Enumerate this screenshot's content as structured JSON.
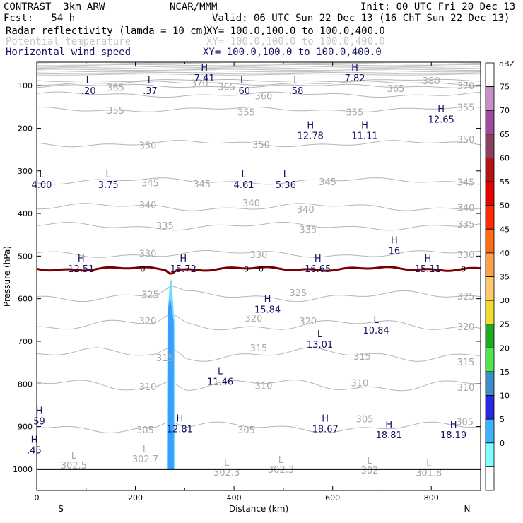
{
  "header": {
    "title": "CONTRAST  3km ARW",
    "center": "NCAR/MMM",
    "init": "Init: 00 UTC Fri 20 Dec 13",
    "fcst": "Fcst:   54 h",
    "valid": "Valid: 06 UTC Sun 22 Dec 13 (16 ChT Sun 22 Dec 13)",
    "fields": [
      {
        "name": "Radar reflectivity (lamda = 10 cm)",
        "xy": "XY= 100.0,100.0 to 100.0,400.0",
        "color": "#000000"
      },
      {
        "name": "Potential temperature",
        "xy": "XY= 100.0,100.0 to 100.0,400.0",
        "color": "#c8c8c8"
      },
      {
        "name": "Horizontal wind speed",
        "xy": "XY= 100.0,100.0 to 100.0,400.0",
        "color": "#141464"
      }
    ]
  },
  "chart_data": {
    "type": "contour-cross-section",
    "xlabel": "Distance (km)",
    "ylabel": "Pressure (hPa)",
    "xlim": [
      0,
      900
    ],
    "ylim": [
      1050,
      45
    ],
    "x_ticks": [
      "0",
      "200",
      "400",
      "600",
      "800"
    ],
    "x_tick_values": [
      0,
      200,
      400,
      600,
      800
    ],
    "y_ticks": [
      "100",
      "200",
      "300",
      "400",
      "500",
      "600",
      "700",
      "800",
      "900",
      "1000"
    ],
    "y_tick_values": [
      100,
      200,
      300,
      400,
      500,
      600,
      700,
      800,
      900,
      1000
    ],
    "x_end_labels": {
      "left": "S",
      "right": "N"
    },
    "theta_contours": [
      {
        "label": "380",
        "p": 88,
        "amp": 2
      },
      {
        "label": "370",
        "p": 94,
        "amp": 3
      },
      {
        "label": "365",
        "p": 101,
        "amp": 3
      },
      {
        "label": "360",
        "p": 121,
        "amp": 4
      },
      {
        "label": "355",
        "p": 156,
        "amp": 4
      },
      {
        "label": "350",
        "p": 236,
        "amp": 5
      },
      {
        "label": "345",
        "p": 324,
        "amp": 5
      },
      {
        "label": "340",
        "p": 385,
        "amp": 6
      },
      {
        "label": "335",
        "p": 430,
        "amp": 6
      },
      {
        "label": "330",
        "p": 495,
        "amp": 6
      },
      {
        "label": "325",
        "p": 594,
        "amp": 8
      },
      {
        "label": "320",
        "p": 662,
        "amp": 9
      },
      {
        "label": "315",
        "p": 731,
        "amp": 10
      },
      {
        "label": "310",
        "p": 803,
        "amp": 10
      },
      {
        "label": "305",
        "p": 902,
        "amp": 8
      }
    ],
    "theta_labels": [
      {
        "text": "380",
        "x": 800,
        "p": 88
      },
      {
        "text": "370",
        "x": 330,
        "p": 94
      },
      {
        "text": "370",
        "x": 870,
        "p": 100
      },
      {
        "text": "365",
        "x": 160,
        "p": 104
      },
      {
        "text": "365",
        "x": 728,
        "p": 106
      },
      {
        "text": "365",
        "x": 385,
        "p": 102
      },
      {
        "text": "360",
        "x": 460,
        "p": 124
      },
      {
        "text": "355",
        "x": 160,
        "p": 158
      },
      {
        "text": "355",
        "x": 425,
        "p": 162
      },
      {
        "text": "355",
        "x": 645,
        "p": 162
      },
      {
        "text": "355",
        "x": 870,
        "p": 150
      },
      {
        "text": "350",
        "x": 225,
        "p": 240
      },
      {
        "text": "350",
        "x": 455,
        "p": 238
      },
      {
        "text": "350",
        "x": 870,
        "p": 226
      },
      {
        "text": "345",
        "x": 230,
        "p": 328
      },
      {
        "text": "345",
        "x": 335,
        "p": 330
      },
      {
        "text": "345",
        "x": 590,
        "p": 325
      },
      {
        "text": "345",
        "x": 870,
        "p": 326
      },
      {
        "text": "340",
        "x": 225,
        "p": 380
      },
      {
        "text": "340",
        "x": 435,
        "p": 375
      },
      {
        "text": "340",
        "x": 545,
        "p": 390
      },
      {
        "text": "340",
        "x": 870,
        "p": 386
      },
      {
        "text": "335",
        "x": 260,
        "p": 428
      },
      {
        "text": "335",
        "x": 550,
        "p": 437
      },
      {
        "text": "335",
        "x": 870,
        "p": 425
      },
      {
        "text": "330",
        "x": 225,
        "p": 494
      },
      {
        "text": "330",
        "x": 450,
        "p": 496
      },
      {
        "text": "330",
        "x": 870,
        "p": 496
      },
      {
        "text": "325",
        "x": 230,
        "p": 590
      },
      {
        "text": "325",
        "x": 530,
        "p": 586
      },
      {
        "text": "325",
        "x": 870,
        "p": 594
      },
      {
        "text": "320",
        "x": 225,
        "p": 651
      },
      {
        "text": "320",
        "x": 440,
        "p": 645
      },
      {
        "text": "320",
        "x": 550,
        "p": 652
      },
      {
        "text": "320",
        "x": 870,
        "p": 665
      },
      {
        "text": "315",
        "x": 260,
        "p": 738
      },
      {
        "text": "315",
        "x": 450,
        "p": 715
      },
      {
        "text": "315",
        "x": 660,
        "p": 735
      },
      {
        "text": "315",
        "x": 870,
        "p": 748
      },
      {
        "text": "310",
        "x": 225,
        "p": 806
      },
      {
        "text": "310",
        "x": 460,
        "p": 804
      },
      {
        "text": "310",
        "x": 655,
        "p": 797
      },
      {
        "text": "310",
        "x": 870,
        "p": 808
      },
      {
        "text": "305",
        "x": 220,
        "p": 907
      },
      {
        "text": "305",
        "x": 425,
        "p": 907
      },
      {
        "text": "305",
        "x": 665,
        "p": 882
      },
      {
        "text": "305",
        "x": 868,
        "p": 888
      }
    ],
    "theta_extrema": [
      {
        "kind": "L",
        "value": "302.5",
        "x": 75,
        "p": 985
      },
      {
        "kind": "L",
        "value": "302.7",
        "x": 220,
        "p": 970
      },
      {
        "kind": "L",
        "value": "302.3",
        "x": 385,
        "p": 1002
      },
      {
        "kind": "L",
        "value": "302.3",
        "x": 495,
        "p": 995
      },
      {
        "kind": "L",
        "value": "302",
        "x": 675,
        "p": 997
      },
      {
        "kind": "L",
        "value": "301.8",
        "x": 795,
        "p": 1003
      }
    ],
    "wind_extrema": [
      {
        "kind": "H",
        "value": "7.41",
        "x": 340,
        "p": 75
      },
      {
        "kind": "H",
        "value": "7.82",
        "x": 645,
        "p": 75
      },
      {
        "kind": "L",
        "value": ".20",
        "x": 105,
        "p": 105
      },
      {
        "kind": "L",
        "value": ".37",
        "x": 230,
        "p": 105
      },
      {
        "kind": "L",
        "value": ".60",
        "x": 418,
        "p": 105
      },
      {
        "kind": "L",
        "value": ".58",
        "x": 526,
        "p": 105
      },
      {
        "kind": "H",
        "value": "12.65",
        "x": 820,
        "p": 172
      },
      {
        "kind": "H",
        "value": "12.78",
        "x": 555,
        "p": 210
      },
      {
        "kind": "H",
        "value": "11.11",
        "x": 665,
        "p": 210
      },
      {
        "kind": "L",
        "value": "4.00",
        "x": 10,
        "p": 325
      },
      {
        "kind": "L",
        "value": "3.75",
        "x": 145,
        "p": 325
      },
      {
        "kind": "L",
        "value": "4.61",
        "x": 420,
        "p": 325
      },
      {
        "kind": "L",
        "value": "5.36",
        "x": 505,
        "p": 325
      },
      {
        "kind": "H",
        "value": "16",
        "x": 725,
        "p": 480
      },
      {
        "kind": "H",
        "value": "12.51",
        "x": 90,
        "p": 523
      },
      {
        "kind": "H",
        "value": "15.72",
        "x": 297,
        "p": 523
      },
      {
        "kind": "H",
        "value": "16.65",
        "x": 570,
        "p": 523
      },
      {
        "kind": "H",
        "value": "15.11",
        "x": 793,
        "p": 523
      },
      {
        "kind": "H",
        "value": "15.84",
        "x": 468,
        "p": 618
      },
      {
        "kind": "L",
        "value": "10.84",
        "x": 688,
        "p": 667
      },
      {
        "kind": "L",
        "value": "13.01",
        "x": 574,
        "p": 700
      },
      {
        "kind": "L",
        "value": "11.46",
        "x": 372,
        "p": 787
      },
      {
        "kind": "H",
        "value": "12.81",
        "x": 290,
        "p": 898
      },
      {
        "kind": "H",
        "value": "18.67",
        "x": 585,
        "p": 898
      },
      {
        "kind": "H",
        "value": "18.81",
        "x": 714,
        "p": 912
      },
      {
        "kind": "H",
        "value": "18.19",
        "x": 845,
        "p": 912
      },
      {
        "kind": "H",
        "value": "59",
        "x": 5,
        "p": 880
      },
      {
        "kind": "H",
        "value": ".45",
        "x": -5,
        "p": 948
      }
    ],
    "freezing_line": {
      "label": "0",
      "p": 530,
      "color": "#7a0000",
      "label_x": [
        215,
        425,
        455,
        865
      ]
    },
    "reflectivity_core": {
      "x_center": 272,
      "p_top": 555,
      "p_bottom": 1000,
      "inner_color": "#3a9eff",
      "outer_color": "#74dcff"
    },
    "surface_p": 1000,
    "colorbar": {
      "title": "dBZ",
      "bins": [
        {
          "label": "75",
          "color": "#ffffff"
        },
        {
          "label": "70",
          "color": "#c88ec8"
        },
        {
          "label": "65",
          "color": "#a04aa0"
        },
        {
          "label": "60",
          "color": "#8c4060"
        },
        {
          "label": "55",
          "color": "#b41414"
        },
        {
          "label": "50",
          "color": "#e60000"
        },
        {
          "label": "45",
          "color": "#ff2a00"
        },
        {
          "label": "40",
          "color": "#ff6c14"
        },
        {
          "label": "35",
          "color": "#ffa04c"
        },
        {
          "label": "30",
          "color": "#ffc86e"
        },
        {
          "label": "25",
          "color": "#f0dc2c"
        },
        {
          "label": "20",
          "color": "#1eaa1e"
        },
        {
          "label": "15",
          "color": "#50e650"
        },
        {
          "label": "10",
          "color": "#3c8cc8"
        },
        {
          "label": "5",
          "color": "#2828e6"
        },
        {
          "label": "0",
          "color": "#3cb4ff"
        },
        {
          "label": "",
          "color": "#80ffff"
        },
        {
          "label": "",
          "color": "#ffffff"
        }
      ]
    }
  }
}
